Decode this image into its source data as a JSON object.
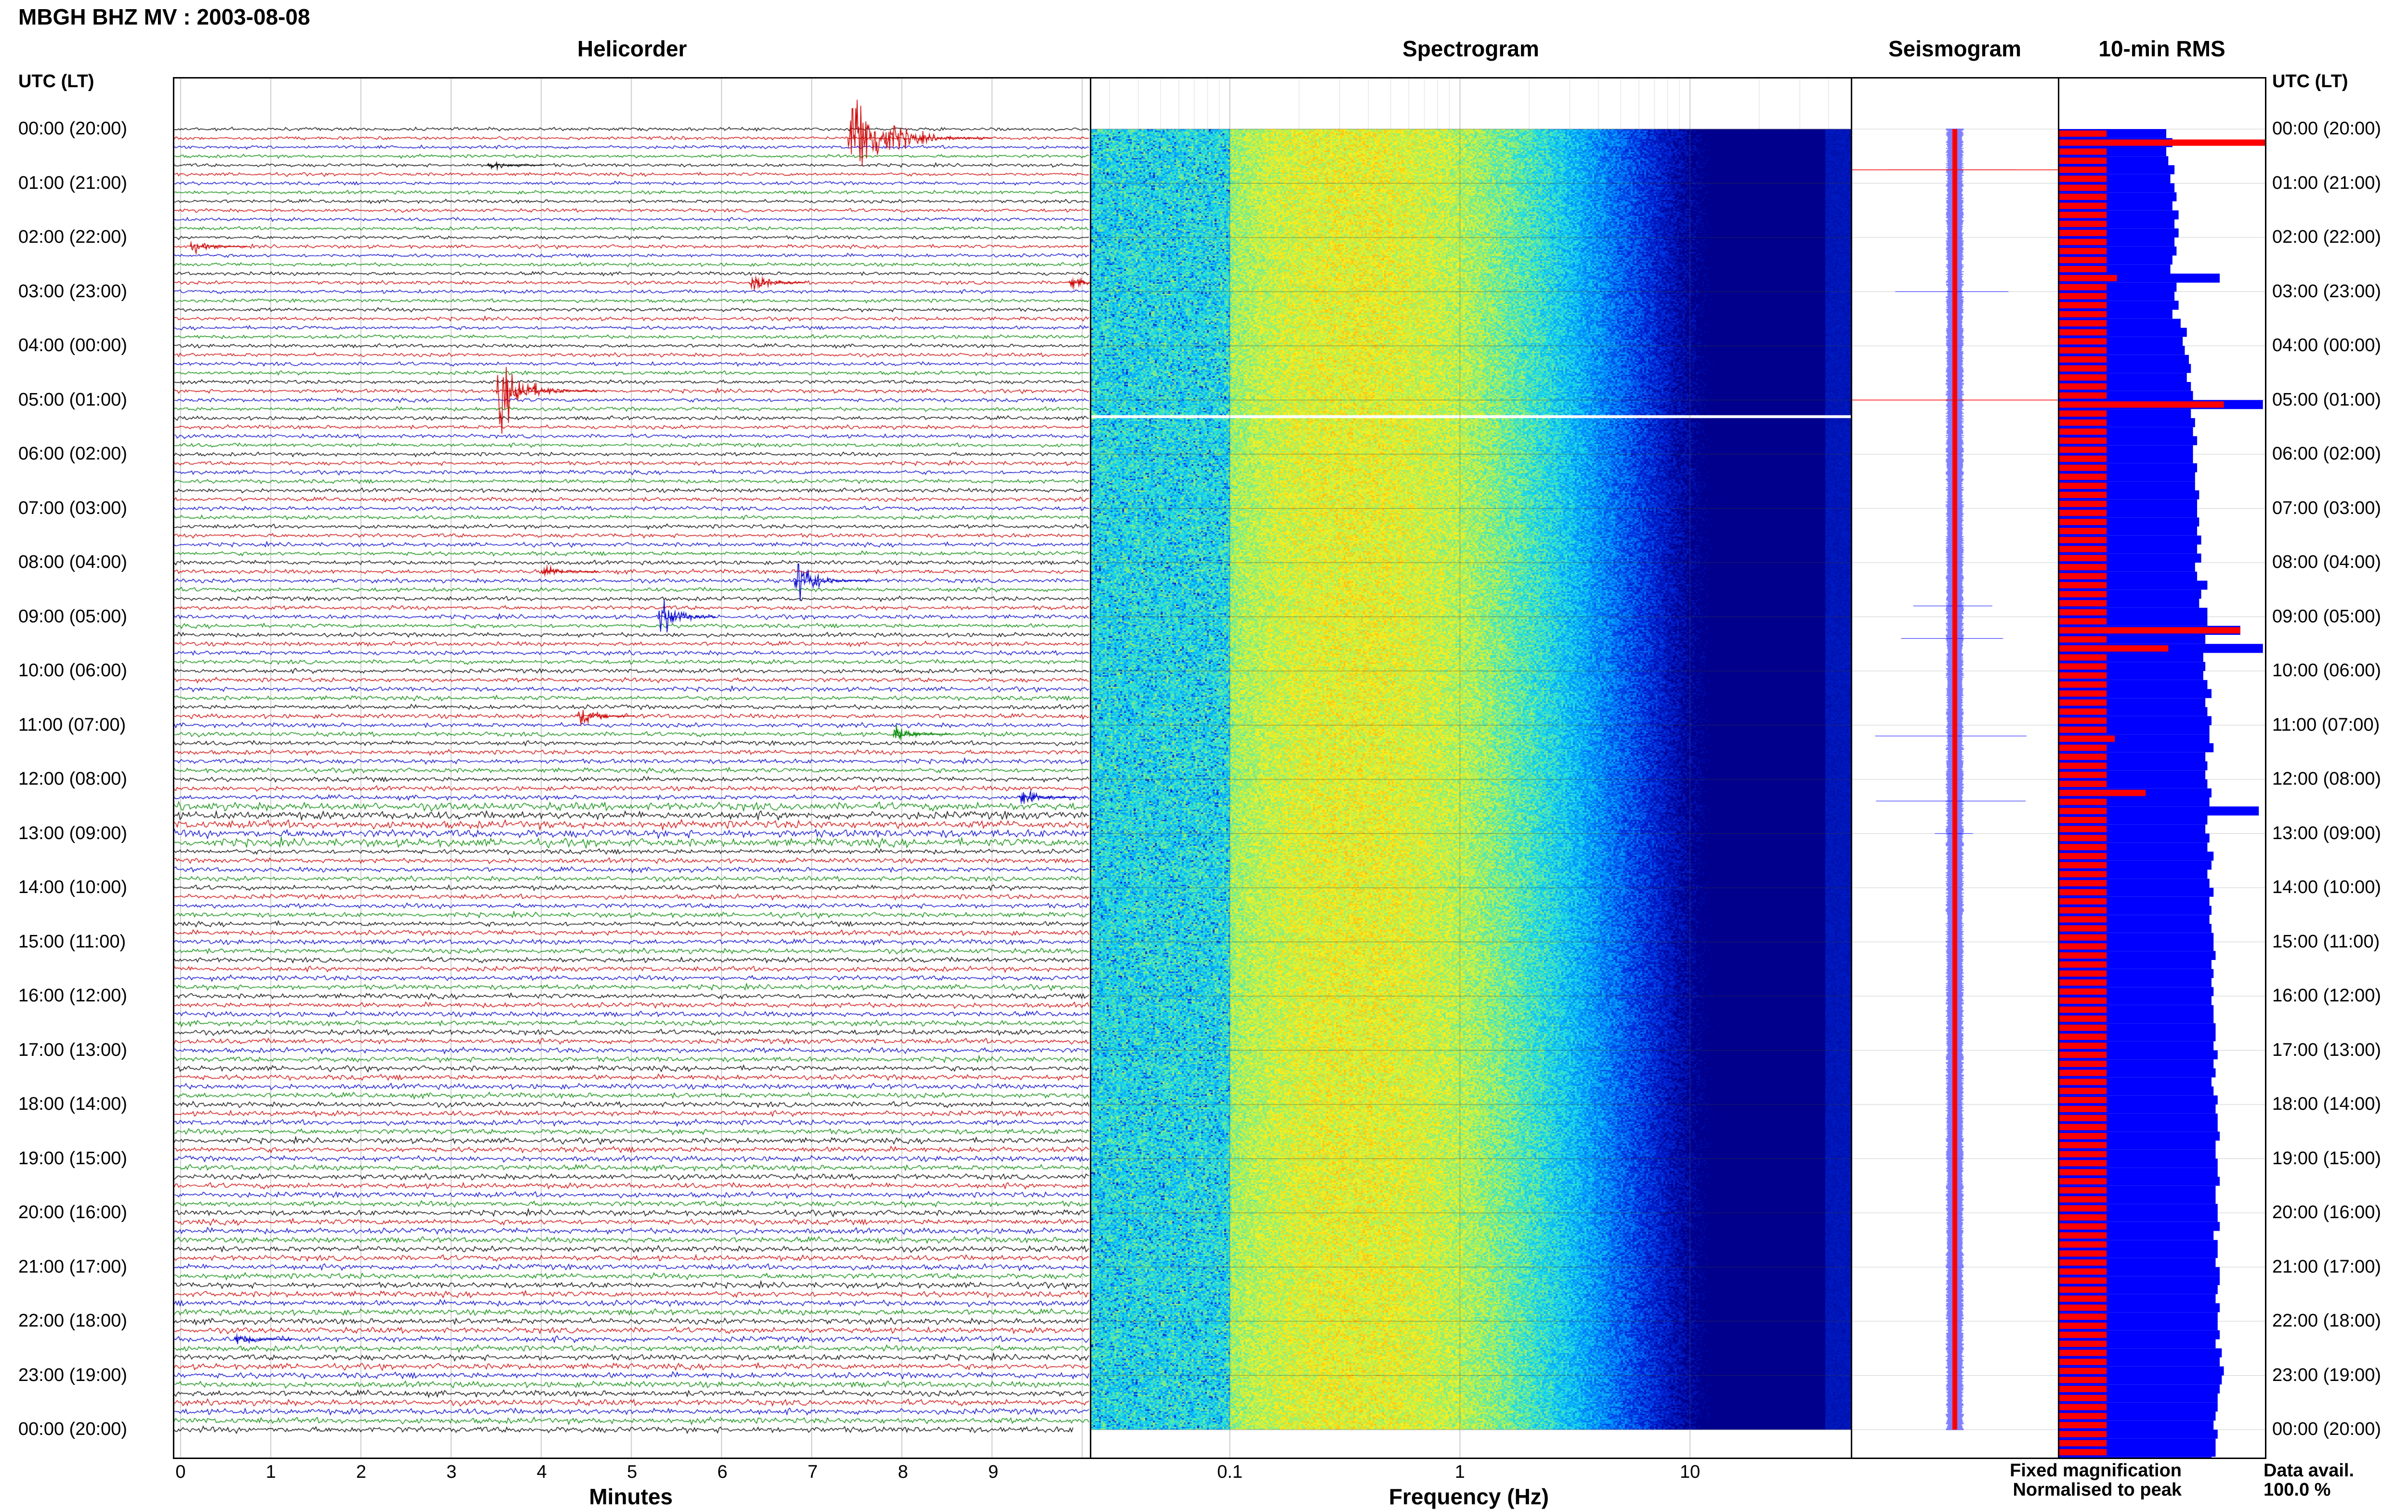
{
  "title": "MBGH BHZ MV : 2003-08-08",
  "axis_label_left": "UTC (LT)",
  "axis_label_right": "UTC (LT)",
  "panels": {
    "helicorder": "Helicorder",
    "spectrogram": "Spectrogram",
    "seismogram": "Seismogram",
    "rms": "10-min RMS"
  },
  "colors": {
    "trace_cycle": [
      "#000000",
      "#cc0000",
      "#0000cc",
      "#008800"
    ],
    "fixed": "#0000ff",
    "normalised": "#ff0000"
  },
  "legend": {
    "fixed": "Fixed magnification",
    "normalised": "Normalised to peak"
  },
  "data_avail_label": "Data avail.",
  "data_avail_value": "100.0 %",
  "chart_data": [
    {
      "type": "line",
      "panel": "Helicorder",
      "xlabel": "Minutes",
      "xlim": [
        0,
        10
      ],
      "x_ticks": [
        "0",
        "1",
        "2",
        "3",
        "4",
        "5",
        "6",
        "7",
        "8",
        "9"
      ],
      "y_ticks": [
        "00:00 (20:00)",
        "01:00 (21:00)",
        "02:00 (22:00)",
        "03:00 (23:00)",
        "04:00 (00:00)",
        "05:00 (01:00)",
        "06:00 (02:00)",
        "07:00 (03:00)",
        "08:00 (04:00)",
        "09:00 (05:00)",
        "10:00 (06:00)",
        "11:00 (07:00)",
        "12:00 (08:00)",
        "13:00 (09:00)",
        "14:00 (10:00)",
        "15:00 (11:00)",
        "16:00 (12:00)",
        "17:00 (13:00)",
        "18:00 (14:00)",
        "19:00 (15:00)",
        "20:00 (16:00)",
        "21:00 (17:00)",
        "22:00 (18:00)",
        "23:00 (19:00)",
        "00:00 (20:00)"
      ],
      "rows_per_hour": 6,
      "events": [
        {
          "hour": 0.1,
          "minute": 7.4,
          "amplitude": 1.0
        },
        {
          "hour": 0.6,
          "minute": 3.4,
          "amplitude": 0.1
        },
        {
          "hour": 2.2,
          "minute": 0.1,
          "amplitude": 0.12
        },
        {
          "hour": 2.9,
          "minute": 6.3,
          "amplitude": 0.22
        },
        {
          "hour": 2.9,
          "minute": 9.85,
          "amplitude": 0.12
        },
        {
          "hour": 4.8,
          "minute": 3.5,
          "amplitude": 0.7
        },
        {
          "hour": 8.2,
          "minute": 4.0,
          "amplitude": 0.15
        },
        {
          "hour": 8.3,
          "minute": 6.8,
          "amplitude": 0.55
        },
        {
          "hour": 8.95,
          "minute": 5.3,
          "amplitude": 0.4
        },
        {
          "hour": 10.8,
          "minute": 4.4,
          "amplitude": 0.18
        },
        {
          "hour": 11.1,
          "minute": 7.9,
          "amplitude": 0.2
        },
        {
          "hour": 12.3,
          "minute": 9.3,
          "amplitude": 0.2
        },
        {
          "hour": 22.3,
          "minute": 0.6,
          "amplitude": 0.12
        }
      ]
    },
    {
      "type": "heatmap",
      "panel": "Spectrogram",
      "xlabel": "Frequency (Hz)",
      "x_scale": "log",
      "x_ticks": [
        "0.1",
        "1",
        "10"
      ],
      "xlim": [
        0.025,
        50
      ],
      "peak_frequency_hz": 0.35,
      "gap_hours": [
        5.3
      ]
    },
    {
      "type": "line",
      "panel": "Seismogram",
      "spike_hours": [
        0.75,
        3.0,
        5.0,
        8.8,
        9.4,
        11.2,
        12.4,
        13.0
      ]
    },
    {
      "type": "bar",
      "panel": "10-min RMS",
      "series": [
        {
          "name": "Fixed magnification",
          "values": [
            0.52,
            0.55,
            0.52,
            0.53,
            0.56,
            0.54,
            0.56,
            0.57,
            0.55,
            0.58,
            0.56,
            0.58,
            0.56,
            0.57,
            0.55,
            0.54,
            0.78,
            0.57,
            0.56,
            0.58,
            0.55,
            0.59,
            0.62,
            0.6,
            0.61,
            0.63,
            0.64,
            0.62,
            0.64,
            0.65,
            0.99,
            0.64,
            0.66,
            0.65,
            0.67,
            0.65,
            0.65,
            0.67,
            0.66,
            0.66,
            0.68,
            0.67,
            0.67,
            0.68,
            0.67,
            0.69,
            0.67,
            0.69,
            0.66,
            0.67,
            0.72,
            0.69,
            0.68,
            0.72,
            0.72,
            0.88,
            0.71,
            0.99,
            0.7,
            0.71,
            0.7,
            0.72,
            0.74,
            0.71,
            0.72,
            0.74,
            0.73,
            0.73,
            0.75,
            0.71,
            0.72,
            0.71,
            0.72,
            0.74,
            0.73,
            0.97,
            0.72,
            0.71,
            0.73,
            0.72,
            0.75,
            0.74,
            0.72,
            0.73,
            0.75,
            0.73,
            0.74,
            0.73,
            0.74,
            0.75,
            0.75,
            0.76,
            0.74,
            0.75,
            0.74,
            0.75,
            0.74,
            0.75,
            0.75,
            0.76,
            0.76,
            0.75,
            0.77,
            0.75,
            0.76,
            0.74,
            0.75,
            0.77,
            0.76,
            0.77,
            0.77,
            0.78,
            0.76,
            0.76,
            0.77,
            0.77,
            0.78,
            0.76,
            0.76,
            0.77,
            0.77,
            0.78,
            0.75,
            0.77,
            0.77,
            0.76,
            0.78,
            0.78,
            0.77,
            0.76,
            0.78,
            0.77,
            0.77,
            0.78,
            0.76,
            0.79,
            0.78,
            0.8,
            0.79,
            0.78,
            0.77,
            0.77,
            0.76,
            0.75,
            0.77,
            0.76,
            0.76,
            0.74
          ]
        },
        {
          "name": "Normalised to peak",
          "values": [
            0.23,
            1.0,
            0.23,
            0.23,
            0.23,
            0.23,
            0.23,
            0.23,
            0.23,
            0.23,
            0.23,
            0.23,
            0.23,
            0.23,
            0.23,
            0.23,
            0.28,
            0.23,
            0.23,
            0.23,
            0.23,
            0.23,
            0.23,
            0.23,
            0.23,
            0.23,
            0.23,
            0.23,
            0.23,
            0.23,
            0.8,
            0.23,
            0.23,
            0.23,
            0.23,
            0.23,
            0.23,
            0.23,
            0.23,
            0.23,
            0.23,
            0.23,
            0.23,
            0.23,
            0.23,
            0.23,
            0.23,
            0.23,
            0.23,
            0.23,
            0.23,
            0.23,
            0.23,
            0.23,
            0.23,
            0.88,
            0.23,
            0.53,
            0.23,
            0.23,
            0.23,
            0.23,
            0.23,
            0.23,
            0.23,
            0.23,
            0.23,
            0.27,
            0.23,
            0.23,
            0.23,
            0.23,
            0.23,
            0.42,
            0.23,
            0.23,
            0.23,
            0.23,
            0.23,
            0.23,
            0.23,
            0.23,
            0.23,
            0.23,
            0.23,
            0.23,
            0.23,
            0.23,
            0.23,
            0.23,
            0.23,
            0.23,
            0.23,
            0.23,
            0.23,
            0.23,
            0.23,
            0.23,
            0.23,
            0.23,
            0.23,
            0.23,
            0.23,
            0.23,
            0.23,
            0.23,
            0.23,
            0.23,
            0.23,
            0.23,
            0.23,
            0.23,
            0.23,
            0.23,
            0.23,
            0.23,
            0.23,
            0.23,
            0.23,
            0.23,
            0.23,
            0.23,
            0.23,
            0.23,
            0.23,
            0.23,
            0.23,
            0.23,
            0.23,
            0.23,
            0.23,
            0.23,
            0.23,
            0.23,
            0.23,
            0.23,
            0.23,
            0.23,
            0.23,
            0.23,
            0.23,
            0.23,
            0.23,
            0.23,
            0.23,
            0.23,
            0.23,
            0.23
          ]
        }
      ]
    }
  ]
}
